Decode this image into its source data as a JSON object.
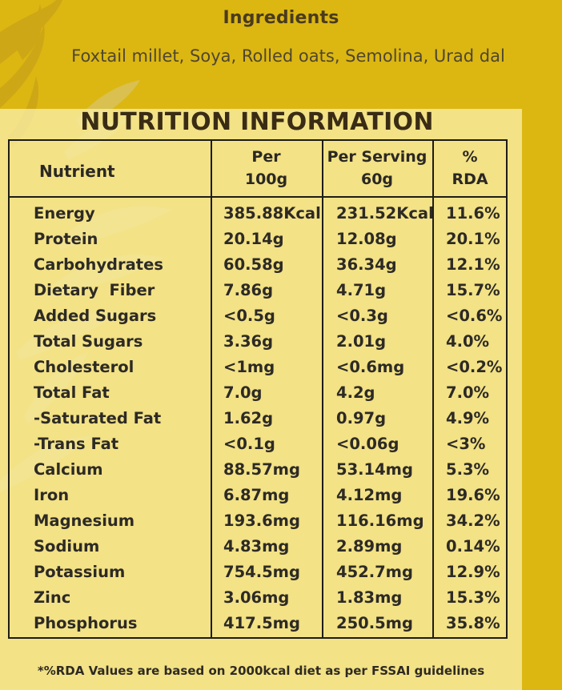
{
  "ingredients": {
    "title": "Ingredients",
    "text": "Foxtail millet, Soya, Rolled oats, Semolina, Urad dal"
  },
  "nutrition": {
    "title": "NUTRITION INFORMATION",
    "headers": {
      "nutrient": "Nutrient",
      "per100_line1": "Per",
      "per100_line2": "100g",
      "serving_line1": "Per Serving",
      "serving_line2": "60g",
      "rda_line1": "%",
      "rda_line2": "RDA"
    },
    "rows": [
      {
        "nutrient": "Energy",
        "per100": "385.88Kcal",
        "serving": "231.52Kcal",
        "rda": "11.6%"
      },
      {
        "nutrient": "Protein",
        "per100": "20.14g",
        "serving": "12.08g",
        "rda": "20.1%"
      },
      {
        "nutrient": "Carbohydrates",
        "per100": "60.58g",
        "serving": "36.34g",
        "rda": "12.1%"
      },
      {
        "nutrient": "Dietary  Fiber",
        "per100": "7.86g",
        "serving": "4.71g",
        "rda": "15.7%"
      },
      {
        "nutrient": "Added Sugars",
        "per100": "<0.5g",
        "serving": "<0.3g",
        "rda": "<0.6%"
      },
      {
        "nutrient": "Total Sugars",
        "per100": "3.36g",
        "serving": "2.01g",
        "rda": "4.0%"
      },
      {
        "nutrient": "Cholesterol",
        "per100": "<1mg",
        "serving": "<0.6mg",
        "rda": "<0.2%"
      },
      {
        "nutrient": "Total Fat",
        "per100": "7.0g",
        "serving": "4.2g",
        "rda": "7.0%"
      },
      {
        "nutrient": "-Saturated Fat",
        "per100": "1.62g",
        "serving": "0.97g",
        "rda": "4.9%"
      },
      {
        "nutrient": "-Trans Fat",
        "per100": "<0.1g",
        "serving": "<0.06g",
        "rda": "<3%"
      },
      {
        "nutrient": "Calcium",
        "per100": "88.57mg",
        "serving": "53.14mg",
        "rda": "5.3%"
      },
      {
        "nutrient": "Iron",
        "per100": "6.87mg",
        "serving": "4.12mg",
        "rda": "19.6%"
      },
      {
        "nutrient": "Magnesium",
        "per100": "193.6mg",
        "serving": "116.16mg",
        "rda": "34.2%"
      },
      {
        "nutrient": "Sodium",
        "per100": "4.83mg",
        "serving": "2.89mg",
        "rda": "0.14%"
      },
      {
        "nutrient": "Potassium",
        "per100": "754.5mg",
        "serving": "452.7mg",
        "rda": "12.9%"
      },
      {
        "nutrient": "Zinc",
        "per100": "3.06mg",
        "serving": "1.83mg",
        "rda": "15.3%"
      },
      {
        "nutrient": "Phosphorus",
        "per100": "417.5mg",
        "serving": "250.5mg",
        "rda": "35.8%"
      }
    ]
  },
  "footnote": "*%RDA Values are based on 2000kcal diet as per FSSAI guidelines",
  "colors": {
    "background": "#dcb712",
    "panel": "#f6e9a0",
    "text": "#2d2a25"
  },
  "icons": [
    "wheat-decoration-icon"
  ]
}
